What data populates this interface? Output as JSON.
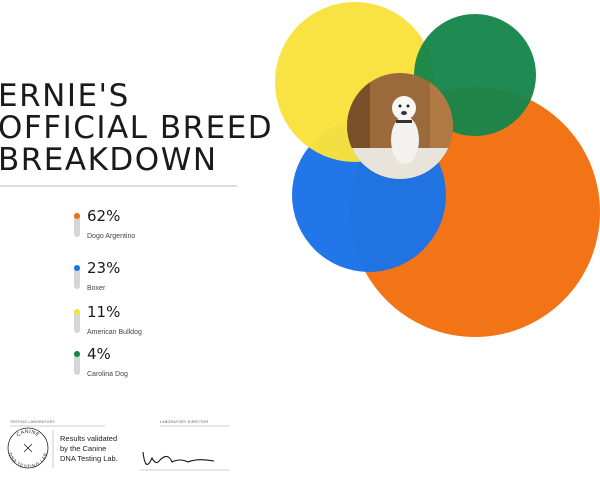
{
  "title": [
    "ERNIE'S",
    "OFFICIAL BREED",
    "BREAKDOWN"
  ],
  "breeds": [
    {
      "value": 62,
      "label": "62%",
      "name": "Dogo Argentino",
      "color": "#f2700f"
    },
    {
      "value": 23,
      "label": "23%",
      "name": "Boxer",
      "color": "#1a73e8"
    },
    {
      "value": 11,
      "label": "11%",
      "name": "American Bulldog",
      "color": "#f9e23c"
    },
    {
      "value": 4,
      "label": "4%",
      "name": "Carolina Dog",
      "color": "#14844a"
    }
  ],
  "footer": {
    "lab_label": "TESTING LABORATORY",
    "director_label": "LABORATORY DIRECTOR",
    "logo_top": "CANINE",
    "logo_bottom": "DNA TESTING LAB",
    "note": [
      "Results validated",
      "by the Canine",
      "DNA Testing Lab."
    ]
  }
}
